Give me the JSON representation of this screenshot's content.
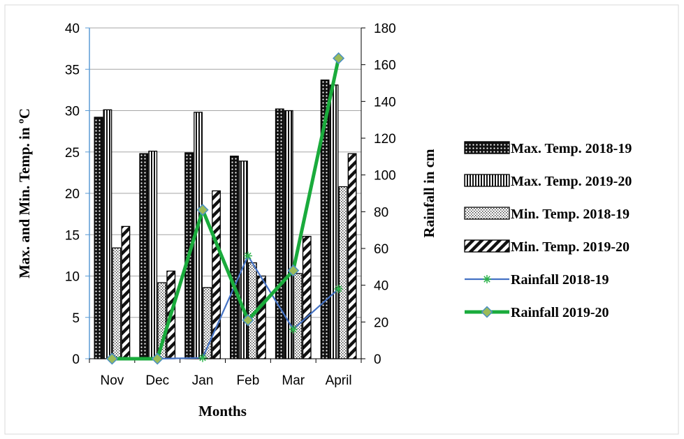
{
  "chart_data": {
    "type": "bar",
    "categories": [
      "Nov",
      "Dec",
      "Jan",
      "Feb",
      "Mar",
      "April"
    ],
    "xlabel": "Months",
    "ylabel": "Max. and Min. Temp. in ºC",
    "y2label": "Rainfall in cm",
    "ylim": [
      0,
      40
    ],
    "y2lim": [
      0,
      180
    ],
    "yticks": [
      "0",
      "5",
      "10",
      "15",
      "20",
      "25",
      "30",
      "35",
      "40"
    ],
    "y2ticks": [
      "0",
      "20",
      "40",
      "60",
      "80",
      "100",
      "120",
      "140",
      "160",
      "180"
    ],
    "grid": true,
    "legend_position": "right",
    "series": [
      {
        "name": "Max. Temp. 2018-19",
        "type": "bar",
        "axis": "left",
        "pattern": "dots",
        "values": [
          29.2,
          24.8,
          24.9,
          24.5,
          30.2,
          33.7
        ]
      },
      {
        "name": "Max. Temp. 2019-20",
        "type": "bar",
        "axis": "left",
        "pattern": "vertical",
        "values": [
          30.1,
          25.1,
          29.8,
          23.9,
          30.0,
          33.1
        ]
      },
      {
        "name": "Min. Temp. 2018-19",
        "type": "bar",
        "axis": "left",
        "pattern": "speckle",
        "values": [
          13.4,
          9.2,
          8.6,
          11.6,
          10.3,
          20.8
        ]
      },
      {
        "name": "Min. Temp. 2019-20",
        "type": "bar",
        "axis": "left",
        "pattern": "diagonal",
        "values": [
          16.0,
          10.6,
          20.3,
          10.0,
          14.8,
          24.8
        ]
      },
      {
        "name": "Rainfall 2018-19",
        "type": "line",
        "axis": "right",
        "color": "#4472c4",
        "marker": "star",
        "values": [
          0,
          0,
          0.5,
          56,
          16,
          38
        ]
      },
      {
        "name": "Rainfall 2019-20",
        "type": "line",
        "axis": "right",
        "color": "#1aab3c",
        "marker": "diamond",
        "marker_color": "#9bbb59",
        "values": [
          0,
          0,
          81,
          21,
          48,
          163.5
        ]
      }
    ]
  }
}
